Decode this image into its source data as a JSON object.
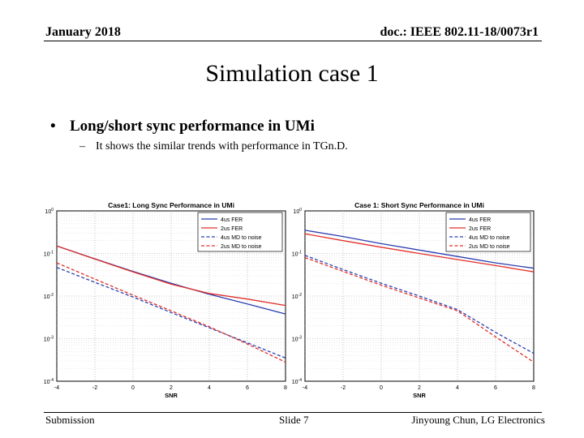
{
  "header": {
    "date": "January 2018",
    "doc": "doc.: IEEE 802.11-18/0073r1"
  },
  "title": "Simulation case 1",
  "bullet": "Long/short sync performance in UMi",
  "sub_bullet": "It shows the similar trends with performance in TGn.D.",
  "footer": {
    "left": "Submission",
    "center": "Slide 7",
    "right": "Jinyoung Chun, LG Electronics"
  },
  "colors": {
    "blue": "#2b3fb0",
    "red": "#e0302a"
  },
  "chart_data": [
    {
      "type": "line",
      "title": "Case1: Long Sync Performance in UMi",
      "xlabel": "SNR",
      "ylabel": "",
      "xlim": [
        -4,
        8
      ],
      "ylim": [
        0.0001,
        1
      ],
      "yscale": "log",
      "grid": true,
      "legend_position": "top-right",
      "x_ticks": [
        "-4",
        "-2",
        "0",
        "2",
        "4",
        "6",
        "8"
      ],
      "y_ticks": [
        "10^0",
        "10^-1",
        "10^-2",
        "10^-3",
        "10^-4"
      ],
      "x": [
        -4,
        -2,
        0,
        2,
        4,
        6,
        8
      ],
      "series": [
        {
          "name": "4us FER",
          "color": "#2b3fb0",
          "dash": false,
          "values": [
            0.15,
            0.075,
            0.038,
            0.02,
            0.011,
            0.0065,
            0.0038
          ]
        },
        {
          "name": "2us FER",
          "color": "#e0302a",
          "dash": false,
          "values": [
            0.15,
            0.074,
            0.037,
            0.019,
            0.0115,
            0.0085,
            0.006
          ]
        },
        {
          "name": "4us MD to noise",
          "color": "#2b3fb0",
          "dash": true,
          "values": [
            0.047,
            0.021,
            0.0095,
            0.0041,
            0.0018,
            0.0008,
            0.00035
          ]
        },
        {
          "name": "2us MD to noise",
          "color": "#e0302a",
          "dash": true,
          "values": [
            0.06,
            0.025,
            0.0105,
            0.0045,
            0.0019,
            0.00075,
            0.00028
          ]
        }
      ]
    },
    {
      "type": "line",
      "title": "Case 1: Short Sync Performance in UMi",
      "xlabel": "SNR",
      "ylabel": "",
      "xlim": [
        -4,
        8
      ],
      "ylim": [
        0.0001,
        1
      ],
      "yscale": "log",
      "grid": true,
      "legend_position": "top-right",
      "x_ticks": [
        "-4",
        "-2",
        "0",
        "2",
        "4",
        "6",
        "8"
      ],
      "y_ticks": [
        "10^0",
        "10^-1",
        "10^-2",
        "10^-3",
        "10^-4"
      ],
      "x": [
        -4,
        -2,
        0,
        2,
        4,
        6,
        8
      ],
      "series": [
        {
          "name": "4us FER",
          "color": "#2b3fb0",
          "dash": false,
          "values": [
            0.35,
            0.25,
            0.17,
            0.12,
            0.085,
            0.06,
            0.045
          ]
        },
        {
          "name": "2us FER",
          "color": "#e0302a",
          "dash": false,
          "values": [
            0.29,
            0.2,
            0.14,
            0.1,
            0.072,
            0.052,
            0.037
          ]
        },
        {
          "name": "4us MD to noise",
          "color": "#2b3fb0",
          "dash": true,
          "values": [
            0.09,
            0.042,
            0.02,
            0.01,
            0.0048,
            0.0014,
            0.00045
          ]
        },
        {
          "name": "2us MD to noise",
          "color": "#e0302a",
          "dash": true,
          "values": [
            0.08,
            0.038,
            0.018,
            0.009,
            0.0045,
            0.0011,
            0.00028
          ]
        }
      ]
    }
  ]
}
